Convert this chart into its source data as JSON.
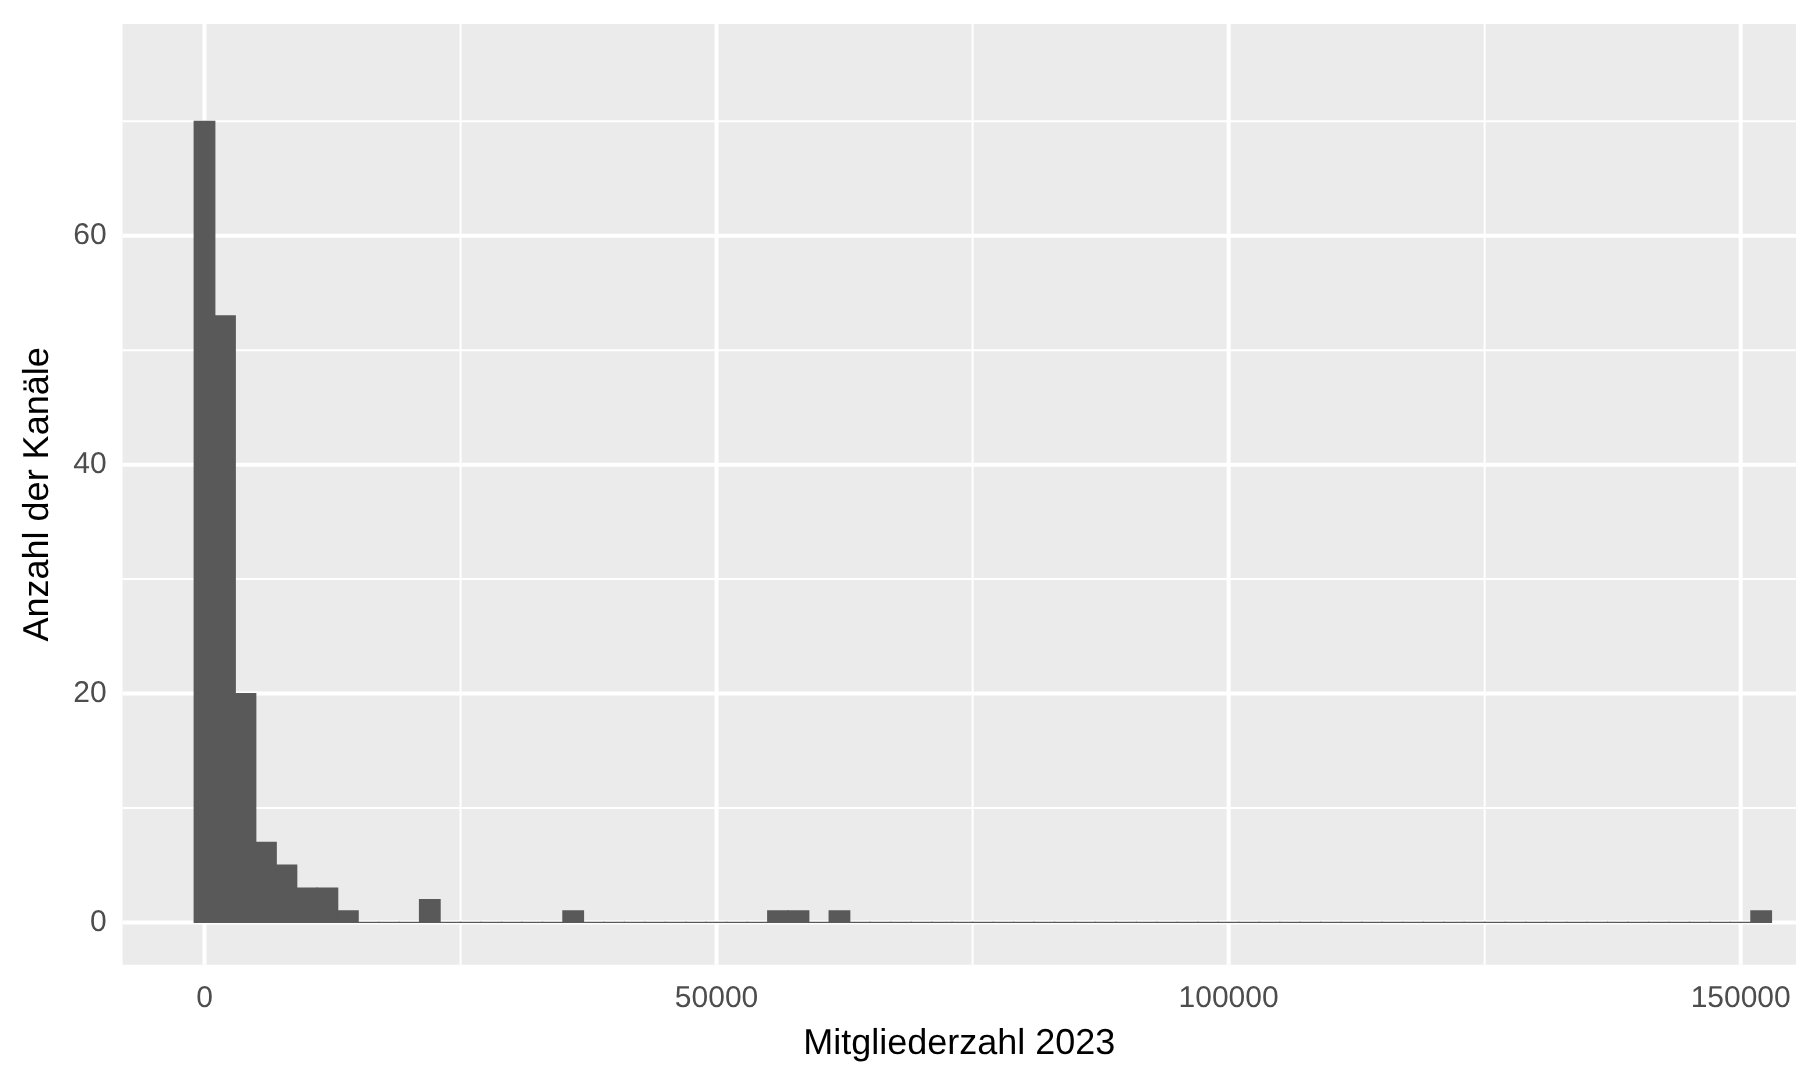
{
  "chart_data": {
    "type": "histogram",
    "xlabel": "Mitgliederzahl 2023",
    "ylabel": "Anzahl der Kanäle",
    "bins": [
      -1000,
      1000,
      3000,
      5000,
      7000,
      9000,
      11000,
      13000,
      15000,
      17000,
      19000,
      21000,
      23000,
      25000,
      27000,
      29000,
      31000,
      33000,
      35000,
      37000,
      39000,
      41000,
      43000,
      45000,
      47000,
      49000,
      51000,
      53000,
      55000,
      57000,
      59000,
      61000,
      63000,
      65000,
      67000,
      69000,
      71000,
      73000,
      75000,
      77000,
      79000,
      81000,
      83000,
      85000,
      87000,
      89000,
      91000,
      93000,
      95000,
      97000,
      99000,
      101000,
      103000,
      105000,
      107000,
      109000,
      111000,
      113000,
      115000,
      117000,
      119000,
      121000,
      123000,
      125000,
      127000,
      129000,
      131000,
      133000,
      135000,
      137000,
      139000,
      141000,
      143000,
      145000,
      147000,
      149000,
      151000,
      153000
    ],
    "values": [
      70,
      53,
      20,
      7,
      5,
      3,
      3,
      1,
      0,
      0,
      0,
      2,
      0,
      0,
      0,
      0,
      0,
      0,
      1,
      0,
      0,
      0,
      0,
      0,
      0,
      0,
      0,
      0,
      1,
      1,
      0,
      1,
      0,
      0,
      0,
      0,
      0,
      0,
      0,
      0,
      0,
      0,
      0,
      0,
      0,
      0,
      0,
      0,
      0,
      0,
      0,
      0,
      0,
      0,
      0,
      0,
      0,
      0,
      0,
      0,
      0,
      0,
      0,
      0,
      0,
      0,
      0,
      0,
      0,
      0,
      0,
      0,
      0,
      0,
      0,
      0,
      1
    ],
    "color": "#595959",
    "xlim": [
      -8000,
      155400
    ],
    "xticks": [
      0,
      50000,
      100000,
      150000
    ],
    "ylim": [
      -3.7,
      78.5
    ],
    "yticks": [
      0,
      20,
      40,
      60
    ],
    "grid": true,
    "legend": false
  }
}
